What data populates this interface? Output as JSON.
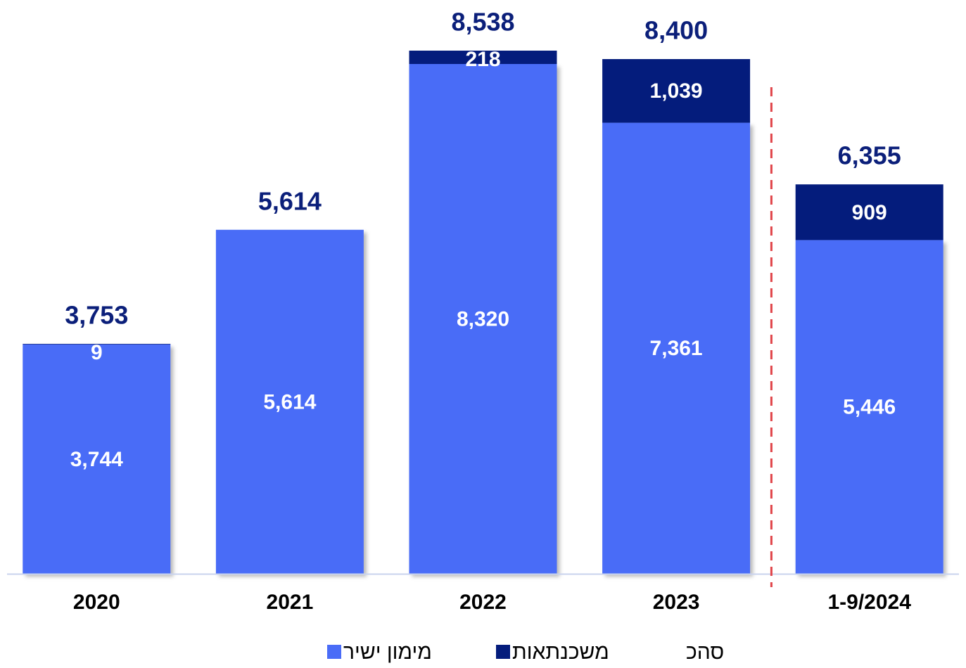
{
  "chart_data": {
    "type": "bar",
    "stacked": true,
    "categories": [
      "2020",
      "2021",
      "2022",
      "2023",
      "1-9/2024"
    ],
    "series": [
      {
        "name": "מימון ישיר",
        "values": [
          3744,
          5614,
          8320,
          7361,
          5446
        ],
        "color": "#4a6cf7"
      },
      {
        "name": "משכנתאות",
        "values": [
          9,
          0,
          218,
          1039,
          909
        ],
        "color": "#041c7c"
      }
    ],
    "totals": [
      3753,
      5614,
      8538,
      8400,
      6355
    ],
    "value_labels": {
      "direct": [
        "3,744",
        "5,614",
        "8,320",
        "7,361",
        "5,446"
      ],
      "mortgage": [
        "9",
        "",
        "218",
        "1,039",
        "909"
      ],
      "totals": [
        "3,753",
        "5,614",
        "8,538",
        "8,400",
        "6,355"
      ]
    },
    "total_legend_label": "סהכ",
    "ylim": [
      0,
      8600
    ],
    "grid": false,
    "legend_position": "bottom",
    "divider_before_category": "1-9/2024",
    "colors": {
      "total_label": "#0b1f7a",
      "divider": "#e0454a",
      "axis": "#c9d3ee"
    }
  }
}
